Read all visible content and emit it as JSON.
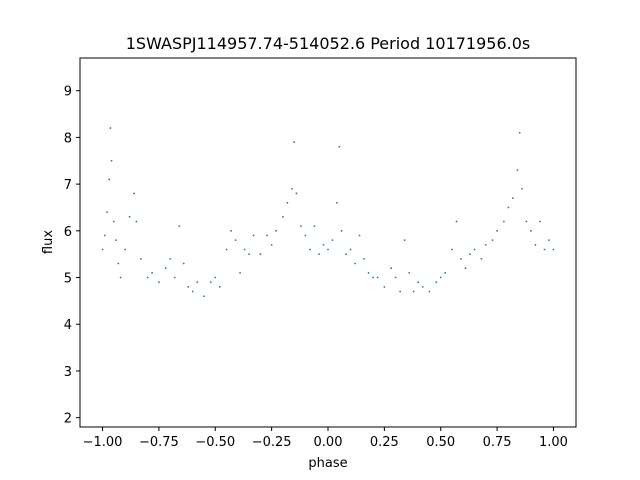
{
  "chart_data": {
    "type": "scatter",
    "title": "1SWASPJ114957.74-514052.6 Period 10171956.0s",
    "xlabel": "phase",
    "ylabel": "flux",
    "xlim": [
      -1.1,
      1.1
    ],
    "ylim": [
      1.8,
      9.7
    ],
    "xticks": [
      -1.0,
      -0.75,
      -0.5,
      -0.25,
      0.0,
      0.25,
      0.5,
      0.75,
      1.0
    ],
    "xtick_labels": [
      "−1.00",
      "−0.75",
      "−0.50",
      "−0.25",
      "0.00",
      "0.25",
      "0.50",
      "0.75",
      "1.00"
    ],
    "yticks": [
      2,
      3,
      4,
      5,
      6,
      7,
      8,
      9
    ],
    "ytick_labels": [
      "2",
      "3",
      "4",
      "5",
      "6",
      "7",
      "8",
      "9"
    ],
    "grid": false,
    "marker_color": "#1f77b4",
    "description_of_points": "phase-folded light curve; repeated pattern over two cycles",
    "series": [
      {
        "points": [
          [
            -1.0,
            5.6
          ],
          [
            -0.99,
            5.9
          ],
          [
            -0.98,
            6.4
          ],
          [
            -0.97,
            7.1
          ],
          [
            -0.965,
            8.2
          ],
          [
            -0.96,
            7.5
          ],
          [
            -0.95,
            6.2
          ],
          [
            -0.94,
            5.8
          ],
          [
            -0.93,
            5.3
          ],
          [
            -0.92,
            5.0
          ],
          [
            -0.9,
            5.6
          ],
          [
            -0.88,
            6.3
          ],
          [
            -0.86,
            6.8
          ],
          [
            -0.85,
            6.2
          ],
          [
            -0.83,
            5.4
          ],
          [
            -0.8,
            5.0
          ],
          [
            -0.78,
            5.1
          ],
          [
            -0.75,
            4.9
          ],
          [
            -0.72,
            5.2
          ],
          [
            -0.7,
            5.4
          ],
          [
            -0.68,
            5.0
          ],
          [
            -0.66,
            6.1
          ],
          [
            -0.64,
            5.3
          ],
          [
            -0.62,
            4.8
          ],
          [
            -0.6,
            4.7
          ],
          [
            -0.58,
            4.9
          ],
          [
            -0.55,
            4.6
          ],
          [
            -0.52,
            4.9
          ],
          [
            -0.5,
            5.0
          ],
          [
            -0.48,
            4.8
          ],
          [
            -0.45,
            5.6
          ],
          [
            -0.43,
            6.0
          ],
          [
            -0.41,
            5.8
          ],
          [
            -0.39,
            5.1
          ],
          [
            -0.37,
            5.6
          ],
          [
            -0.35,
            5.5
          ],
          [
            -0.33,
            5.9
          ],
          [
            -0.3,
            5.5
          ],
          [
            -0.27,
            5.9
          ],
          [
            -0.25,
            5.7
          ],
          [
            -0.23,
            6.0
          ],
          [
            -0.2,
            6.3
          ],
          [
            -0.18,
            6.6
          ],
          [
            -0.16,
            6.9
          ],
          [
            -0.15,
            7.9
          ],
          [
            -0.14,
            6.8
          ],
          [
            -0.12,
            6.1
          ],
          [
            -0.1,
            5.9
          ],
          [
            -0.08,
            5.6
          ],
          [
            -0.06,
            6.1
          ],
          [
            -0.04,
            5.5
          ],
          [
            -0.02,
            5.7
          ],
          [
            0.0,
            5.6
          ],
          [
            0.02,
            5.8
          ],
          [
            0.04,
            6.6
          ],
          [
            0.05,
            7.8
          ],
          [
            0.06,
            6.0
          ],
          [
            0.08,
            5.5
          ],
          [
            0.1,
            5.6
          ],
          [
            0.12,
            5.3
          ],
          [
            0.14,
            5.9
          ],
          [
            0.16,
            5.4
          ],
          [
            0.18,
            5.1
          ],
          [
            0.2,
            5.0
          ],
          [
            0.22,
            5.0
          ],
          [
            0.25,
            4.8
          ],
          [
            0.28,
            5.2
          ],
          [
            0.3,
            5.0
          ],
          [
            0.32,
            4.7
          ],
          [
            0.34,
            5.8
          ],
          [
            0.36,
            5.1
          ],
          [
            0.38,
            4.7
          ],
          [
            0.4,
            4.9
          ],
          [
            0.42,
            4.8
          ],
          [
            0.45,
            4.7
          ],
          [
            0.48,
            4.9
          ],
          [
            0.5,
            5.0
          ],
          [
            0.52,
            5.1
          ],
          [
            0.55,
            5.6
          ],
          [
            0.57,
            6.2
          ],
          [
            0.59,
            5.4
          ],
          [
            0.61,
            5.2
          ],
          [
            0.63,
            5.5
          ],
          [
            0.65,
            5.6
          ],
          [
            0.68,
            5.4
          ],
          [
            0.7,
            5.7
          ],
          [
            0.73,
            5.8
          ],
          [
            0.75,
            6.0
          ],
          [
            0.78,
            6.2
          ],
          [
            0.8,
            6.5
          ],
          [
            0.82,
            6.7
          ],
          [
            0.84,
            7.3
          ],
          [
            0.85,
            8.1
          ],
          [
            0.86,
            6.9
          ],
          [
            0.88,
            6.2
          ],
          [
            0.9,
            6.0
          ],
          [
            0.92,
            5.7
          ],
          [
            0.94,
            6.2
          ],
          [
            0.96,
            5.6
          ],
          [
            0.98,
            5.8
          ],
          [
            1.0,
            5.6
          ]
        ]
      }
    ]
  }
}
